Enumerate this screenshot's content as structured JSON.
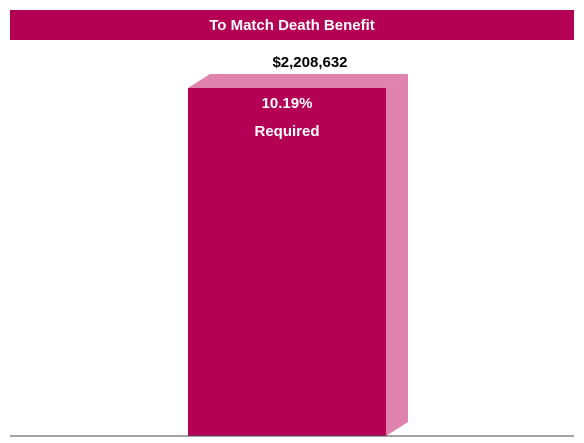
{
  "chart_data": {
    "type": "bar",
    "title": "To Match Death Benefit",
    "categories": [
      ""
    ],
    "values": [
      2208632
    ],
    "value_label": "$2,208,632",
    "bar_labels": [
      "10.19%",
      "Required"
    ],
    "colors": {
      "header_bg": "#b40055",
      "bar_front": "#b40055",
      "bar_side": "#df82ad",
      "bar_top": "#df82ad",
      "header_text": "#ffffff",
      "bar_text": "#ffffff",
      "value_text": "#000000",
      "baseline": "#444444"
    }
  }
}
